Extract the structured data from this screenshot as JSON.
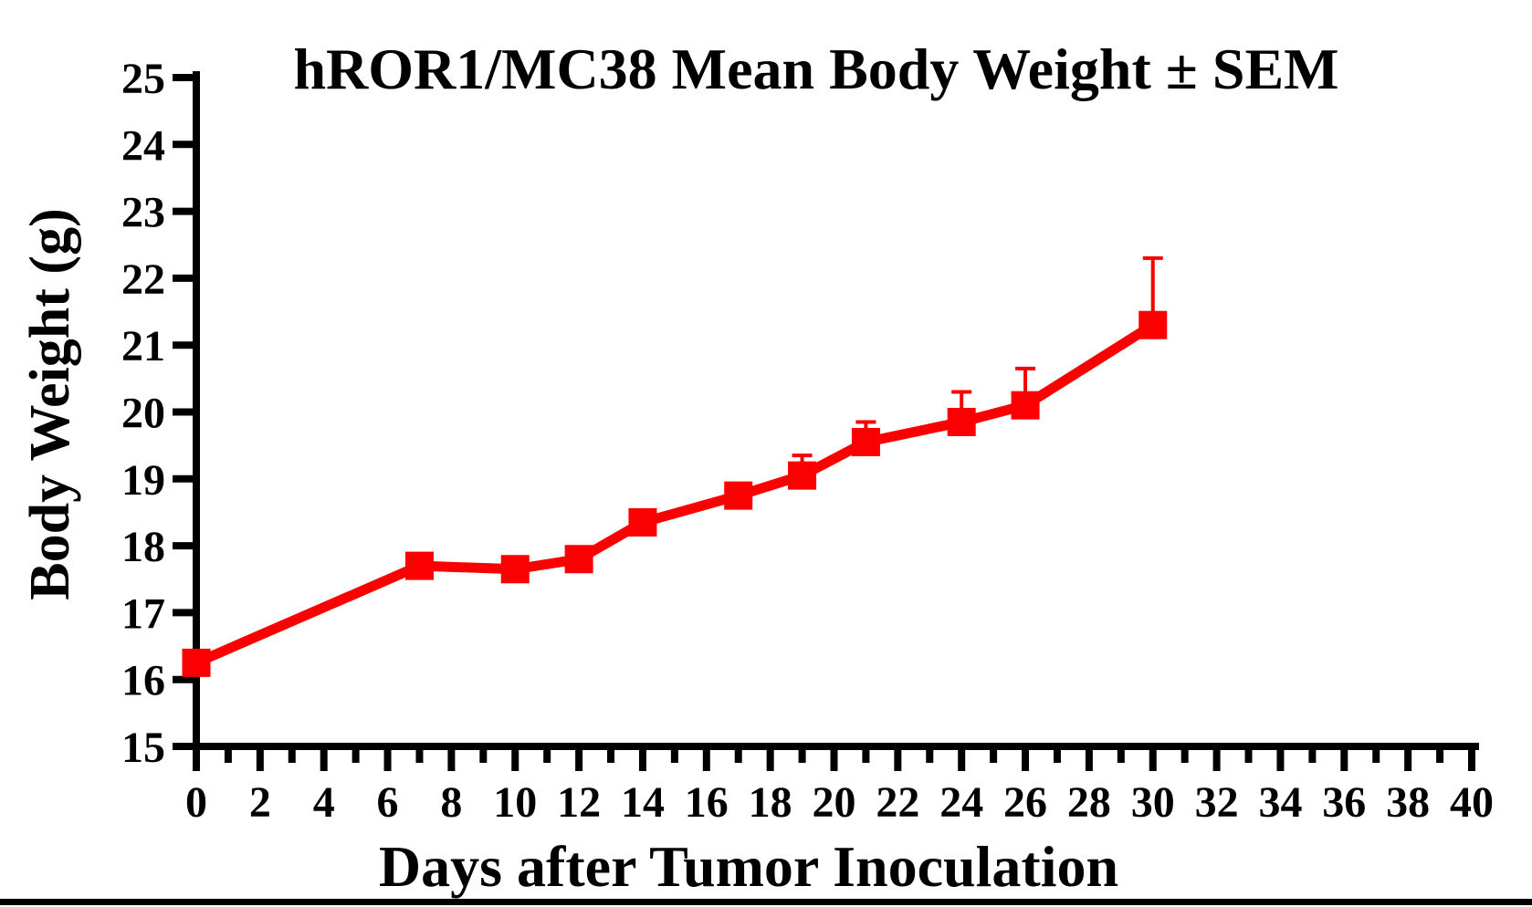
{
  "chart_data": {
    "type": "line",
    "title": "hROR1/MC38 Mean Body Weight ± SEM",
    "xlabel": "Days after Tumor Inoculation",
    "ylabel": "Body Weight (g)",
    "xlim": [
      0,
      40
    ],
    "ylim": [
      15,
      25
    ],
    "x_major_tick_step": 2,
    "x_minor_tick_step": 1,
    "y_tick_step": 1,
    "x_tick_labels": [
      0,
      2,
      4,
      6,
      8,
      10,
      12,
      14,
      16,
      18,
      20,
      22,
      24,
      26,
      28,
      30,
      32,
      34,
      36,
      38,
      40
    ],
    "y_tick_labels": [
      15,
      16,
      17,
      18,
      19,
      20,
      21,
      22,
      23,
      24,
      25
    ],
    "grid": false,
    "legend_position": "none",
    "axis_color": "#000000",
    "series": [
      {
        "color": "#FA0000",
        "marker": "square",
        "error_bars": "upper SEM",
        "x": [
          0,
          7,
          10,
          12,
          14,
          17,
          19,
          21,
          24,
          26,
          30
        ],
        "y": [
          16.25,
          17.7,
          17.65,
          17.8,
          18.35,
          18.75,
          19.05,
          19.55,
          19.85,
          20.1,
          21.3
        ],
        "sem_upper": [
          0,
          0,
          0,
          0,
          0,
          0,
          0.3,
          0.3,
          0.45,
          0.55,
          1.0
        ]
      }
    ]
  }
}
